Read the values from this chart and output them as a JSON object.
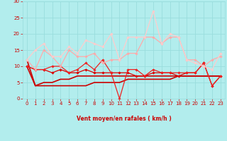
{
  "x": [
    0,
    1,
    2,
    3,
    4,
    5,
    6,
    7,
    8,
    9,
    10,
    11,
    12,
    13,
    14,
    15,
    16,
    17,
    18,
    19,
    20,
    21,
    22,
    23
  ],
  "line_data": [
    {
      "y": [
        12,
        4,
        4,
        4,
        4,
        4,
        4,
        4,
        5,
        5,
        5,
        5,
        6,
        6,
        6,
        6,
        6,
        6,
        7,
        7,
        7,
        7,
        7,
        7
      ],
      "color": "#cc0000",
      "lw": 1.2,
      "marker": null
    },
    {
      "y": [
        10,
        4,
        5,
        5,
        6,
        6,
        7,
        7,
        7,
        7,
        7,
        7,
        7,
        7,
        7,
        7,
        7,
        7,
        7,
        7,
        7,
        7,
        7,
        7
      ],
      "color": "#cc0000",
      "lw": 1.2,
      "marker": null
    },
    {
      "y": [
        10,
        9,
        9,
        8,
        9,
        8,
        8,
        9,
        8,
        8,
        8,
        8,
        8,
        7,
        7,
        8,
        8,
        8,
        7,
        8,
        8,
        11,
        4,
        7
      ],
      "color": "#dd0000",
      "lw": 0.9,
      "marker": "D",
      "ms": 1.8
    },
    {
      "y": [
        10,
        9,
        9,
        10,
        10,
        8,
        9,
        11,
        9,
        12,
        8,
        0,
        9,
        9,
        7,
        9,
        8,
        8,
        8,
        8,
        8,
        11,
        4,
        7
      ],
      "color": "#ee2222",
      "lw": 0.9,
      "marker": "D",
      "ms": 1.8
    },
    {
      "y": [
        12,
        9,
        15,
        13,
        10,
        15,
        13,
        13,
        14,
        11,
        12,
        12,
        14,
        14,
        19,
        19,
        17,
        19,
        19,
        12,
        12,
        10,
        12,
        13
      ],
      "color": "#ffaaaa",
      "lw": 0.9,
      "marker": "D",
      "ms": 1.8
    },
    {
      "y": [
        12,
        15,
        17,
        13,
        13,
        16,
        14,
        18,
        17,
        16,
        20,
        12,
        19,
        19,
        19,
        27,
        17,
        20,
        19,
        12,
        11,
        10,
        9,
        14
      ],
      "color": "#ffcccc",
      "lw": 0.9,
      "marker": "D",
      "ms": 1.8
    }
  ],
  "arrows": [
    "↙",
    "↗",
    "←",
    "←",
    "↖",
    "←",
    "←",
    "←",
    "←",
    "←",
    " ",
    "↘",
    "↗",
    "↘",
    "→",
    "↑",
    "→",
    "→",
    "↗",
    "↑",
    "↖",
    "←",
    "↘",
    "←"
  ],
  "xlabel": "Vent moyen/en rafales ( km/h )",
  "xlim": [
    -0.5,
    23.5
  ],
  "ylim": [
    0,
    30
  ],
  "yticks": [
    0,
    5,
    10,
    15,
    20,
    25,
    30
  ],
  "xticks": [
    0,
    1,
    2,
    3,
    4,
    5,
    6,
    7,
    8,
    9,
    10,
    11,
    12,
    13,
    14,
    15,
    16,
    17,
    18,
    19,
    20,
    21,
    22,
    23
  ],
  "bg_color": "#b2eded",
  "grid_color": "#99dddd",
  "tick_color": "#cc0000",
  "label_color": "#cc0000"
}
